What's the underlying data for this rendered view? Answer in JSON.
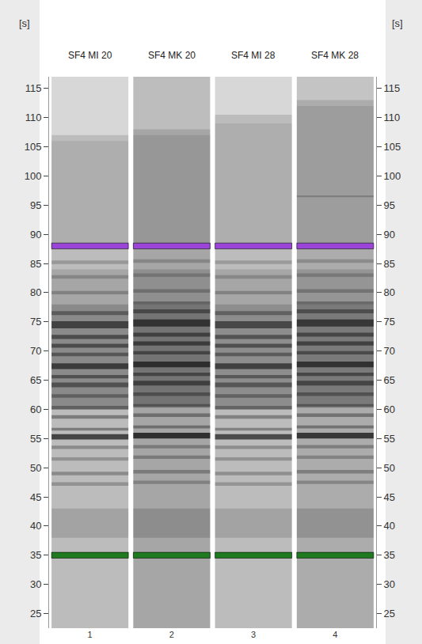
{
  "chart_data": {
    "type": "gel",
    "y_label": "[s]",
    "ylim": [
      22.5,
      117
    ],
    "yticks": [
      25,
      30,
      35,
      40,
      45,
      50,
      55,
      60,
      65,
      70,
      75,
      80,
      85,
      90,
      95,
      100,
      105,
      110,
      115
    ],
    "categories": [
      "SF4 MI 20",
      "SF4 MK 20",
      "SF4 MI 28",
      "SF4 MK 28"
    ],
    "lane_numbers": [
      1,
      2,
      3,
      4
    ],
    "markers": [
      {
        "time": 35,
        "color": "#1f7a1f"
      },
      {
        "time": 88,
        "color": "#9a44d8"
      }
    ],
    "lanes": [
      {
        "smear_end": 107,
        "base": 0,
        "bands": [
          {
            "time": 69,
            "width": 18,
            "intensity": 0.35
          },
          {
            "time": 40.5,
            "width": 5,
            "intensity": 0.18
          },
          {
            "time": 81,
            "width": 6,
            "intensity": 0.15
          },
          {
            "time": 97,
            "width": 18,
            "intensity": 0.1
          },
          {
            "time": 47.2,
            "width": 0.6,
            "intensity": 0.3
          },
          {
            "time": 49,
            "width": 0.6,
            "intensity": 0.35
          },
          {
            "time": 51.5,
            "width": 0.6,
            "intensity": 0.3
          },
          {
            "time": 53.5,
            "width": 0.6,
            "intensity": 0.35
          },
          {
            "time": 55.3,
            "width": 0.9,
            "intensity": 0.85
          },
          {
            "time": 56.6,
            "width": 0.5,
            "intensity": 0.45
          },
          {
            "time": 58.7,
            "width": 0.6,
            "intensity": 0.45
          },
          {
            "time": 60.3,
            "width": 0.6,
            "intensity": 0.4
          },
          {
            "time": 62.3,
            "width": 0.6,
            "intensity": 0.4
          },
          {
            "time": 64.2,
            "width": 0.8,
            "intensity": 0.55
          },
          {
            "time": 65.6,
            "width": 0.6,
            "intensity": 0.55
          },
          {
            "time": 67.4,
            "width": 1,
            "intensity": 0.75
          },
          {
            "time": 69.4,
            "width": 0.6,
            "intensity": 0.5
          },
          {
            "time": 70.9,
            "width": 0.7,
            "intensity": 0.6
          },
          {
            "time": 72.4,
            "width": 0.7,
            "intensity": 0.6
          },
          {
            "time": 74.5,
            "width": 1.2,
            "intensity": 0.7
          },
          {
            "time": 76.5,
            "width": 0.7,
            "intensity": 0.45
          },
          {
            "time": 80,
            "width": 0.6,
            "intensity": 0.3
          },
          {
            "time": 82.7,
            "width": 0.6,
            "intensity": 0.25
          },
          {
            "time": 85.2,
            "width": 0.6,
            "intensity": 0.25
          }
        ]
      },
      {
        "smear_end": 108,
        "base": 0.08,
        "bands": [
          {
            "time": 69.5,
            "width": 18,
            "intensity": 0.4
          },
          {
            "time": 40.5,
            "width": 5,
            "intensity": 0.2
          },
          {
            "time": 81,
            "width": 6,
            "intensity": 0.18
          },
          {
            "time": 97.5,
            "width": 19,
            "intensity": 0.12
          },
          {
            "time": 47.5,
            "width": 0.6,
            "intensity": 0.3
          },
          {
            "time": 49.3,
            "width": 0.6,
            "intensity": 0.35
          },
          {
            "time": 51.8,
            "width": 0.6,
            "intensity": 0.35
          },
          {
            "time": 53.6,
            "width": 0.6,
            "intensity": 0.35
          },
          {
            "time": 55.5,
            "width": 1,
            "intensity": 0.95
          },
          {
            "time": 57,
            "width": 0.5,
            "intensity": 0.45
          },
          {
            "time": 59,
            "width": 0.6,
            "intensity": 0.45
          },
          {
            "time": 60.6,
            "width": 0.6,
            "intensity": 0.4
          },
          {
            "time": 62.6,
            "width": 0.6,
            "intensity": 0.45
          },
          {
            "time": 64.5,
            "width": 0.8,
            "intensity": 0.6
          },
          {
            "time": 66,
            "width": 0.6,
            "intensity": 0.55
          },
          {
            "time": 67.7,
            "width": 1,
            "intensity": 0.8
          },
          {
            "time": 69.7,
            "width": 0.6,
            "intensity": 0.55
          },
          {
            "time": 71.3,
            "width": 0.7,
            "intensity": 0.65
          },
          {
            "time": 72.8,
            "width": 0.7,
            "intensity": 0.6
          },
          {
            "time": 74.8,
            "width": 1.2,
            "intensity": 0.75
          },
          {
            "time": 76.8,
            "width": 0.7,
            "intensity": 0.5
          },
          {
            "time": 80.3,
            "width": 0.6,
            "intensity": 0.3
          },
          {
            "time": 83,
            "width": 0.6,
            "intensity": 0.25
          },
          {
            "time": 85.4,
            "width": 0.6,
            "intensity": 0.25
          }
        ]
      },
      {
        "smear_end": 110.5,
        "base": 0,
        "bands": [
          {
            "time": 69,
            "width": 18,
            "intensity": 0.33
          },
          {
            "time": 40.5,
            "width": 5,
            "intensity": 0.18
          },
          {
            "time": 81,
            "width": 6,
            "intensity": 0.15
          },
          {
            "time": 98.5,
            "width": 21,
            "intensity": 0.1
          },
          {
            "time": 47.2,
            "width": 0.6,
            "intensity": 0.28
          },
          {
            "time": 49,
            "width": 0.6,
            "intensity": 0.32
          },
          {
            "time": 51.5,
            "width": 0.6,
            "intensity": 0.3
          },
          {
            "time": 53.5,
            "width": 0.6,
            "intensity": 0.33
          },
          {
            "time": 55.3,
            "width": 0.9,
            "intensity": 0.8
          },
          {
            "time": 56.6,
            "width": 0.5,
            "intensity": 0.42
          },
          {
            "time": 58.7,
            "width": 0.6,
            "intensity": 0.42
          },
          {
            "time": 60.3,
            "width": 0.6,
            "intensity": 0.38
          },
          {
            "time": 62.3,
            "width": 0.6,
            "intensity": 0.4
          },
          {
            "time": 64.2,
            "width": 0.8,
            "intensity": 0.52
          },
          {
            "time": 65.6,
            "width": 0.6,
            "intensity": 0.5
          },
          {
            "time": 67.4,
            "width": 1,
            "intensity": 0.72
          },
          {
            "time": 69.4,
            "width": 0.6,
            "intensity": 0.48
          },
          {
            "time": 70.9,
            "width": 0.7,
            "intensity": 0.58
          },
          {
            "time": 72.4,
            "width": 0.7,
            "intensity": 0.55
          },
          {
            "time": 74.5,
            "width": 1.2,
            "intensity": 0.65
          },
          {
            "time": 76.5,
            "width": 0.7,
            "intensity": 0.42
          },
          {
            "time": 80,
            "width": 0.6,
            "intensity": 0.28
          },
          {
            "time": 82.7,
            "width": 0.6,
            "intensity": 0.24
          },
          {
            "time": 85.2,
            "width": 0.6,
            "intensity": 0.24
          }
        ]
      },
      {
        "smear_end": 113,
        "base": 0.06,
        "bands": [
          {
            "time": 69.5,
            "width": 18,
            "intensity": 0.38
          },
          {
            "time": 40.5,
            "width": 5,
            "intensity": 0.2
          },
          {
            "time": 81,
            "width": 6,
            "intensity": 0.17
          },
          {
            "time": 100,
            "width": 24,
            "intensity": 0.11
          },
          {
            "time": 96.5,
            "width": 0.3,
            "intensity": 0.25
          },
          {
            "time": 47.5,
            "width": 0.6,
            "intensity": 0.3
          },
          {
            "time": 49.3,
            "width": 0.6,
            "intensity": 0.35
          },
          {
            "time": 51.8,
            "width": 0.6,
            "intensity": 0.32
          },
          {
            "time": 53.6,
            "width": 0.6,
            "intensity": 0.35
          },
          {
            "time": 55.5,
            "width": 1,
            "intensity": 0.9
          },
          {
            "time": 57,
            "width": 0.5,
            "intensity": 0.45
          },
          {
            "time": 59,
            "width": 0.6,
            "intensity": 0.45
          },
          {
            "time": 60.6,
            "width": 0.6,
            "intensity": 0.4
          },
          {
            "time": 62.6,
            "width": 0.6,
            "intensity": 0.45
          },
          {
            "time": 64.5,
            "width": 0.8,
            "intensity": 0.58
          },
          {
            "time": 66,
            "width": 0.6,
            "intensity": 0.55
          },
          {
            "time": 67.7,
            "width": 1,
            "intensity": 0.78
          },
          {
            "time": 69.7,
            "width": 0.6,
            "intensity": 0.52
          },
          {
            "time": 71.3,
            "width": 0.7,
            "intensity": 0.62
          },
          {
            "time": 72.8,
            "width": 0.7,
            "intensity": 0.58
          },
          {
            "time": 74.8,
            "width": 1.2,
            "intensity": 0.72
          },
          {
            "time": 76.8,
            "width": 0.7,
            "intensity": 0.48
          },
          {
            "time": 80.3,
            "width": 0.6,
            "intensity": 0.3
          },
          {
            "time": 83,
            "width": 0.6,
            "intensity": 0.25
          },
          {
            "time": 85.4,
            "width": 0.6,
            "intensity": 0.25
          }
        ]
      }
    ]
  }
}
